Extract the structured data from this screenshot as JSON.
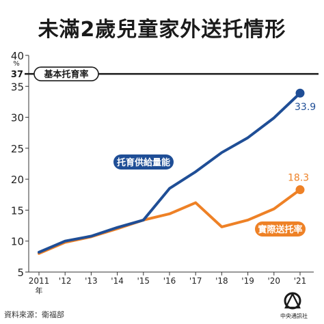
{
  "title": "未滿2歲兒童家外送托情形",
  "source": "資料來源：衛福部",
  "logo_text": "中央通訊社",
  "colors": {
    "supply": "#1f4e96",
    "actual": "#ee8126",
    "reference": "#1a1a1a",
    "grid": "#cccccc"
  },
  "chart_data": {
    "type": "line",
    "x": [
      "2011",
      "'12",
      "'13",
      "'14",
      "'15",
      "'16",
      "'17",
      "'18",
      "'19",
      "'20",
      "'21"
    ],
    "x_first_sublabel": "年",
    "y_unit": "%",
    "ylim": [
      5,
      40
    ],
    "yticks": [
      5,
      10,
      15,
      20,
      25,
      30,
      35,
      40
    ],
    "grid": false,
    "reference_line": {
      "value": 37,
      "label": "基本托育率"
    },
    "series": [
      {
        "name": "托育供給量能",
        "values": [
          8.2,
          10.0,
          10.8,
          12.2,
          13.4,
          18.5,
          21.2,
          24.3,
          26.7,
          29.9,
          33.9
        ],
        "end_label": "33.9"
      },
      {
        "name": "實際送托率",
        "values": [
          8.0,
          9.8,
          10.7,
          12.0,
          13.4,
          14.4,
          16.2,
          12.3,
          13.4,
          15.2,
          18.3
        ],
        "end_label": "18.3"
      }
    ]
  }
}
